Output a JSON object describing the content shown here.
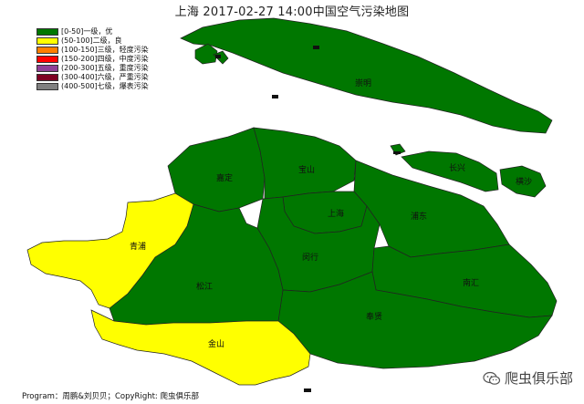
{
  "title": "上海 2017-02-27 14:00中国空气污染地图",
  "legend": [
    {
      "label": "[0-50]一级，优",
      "color": "#007700"
    },
    {
      "label": "(50-100]二级，良",
      "color": "#ffff00"
    },
    {
      "label": "(100-150]三级，轻度污染",
      "color": "#ff7e00"
    },
    {
      "label": "(150-200]四级，中度污染",
      "color": "#ff0000"
    },
    {
      "label": "(200-300]五级，重度污染",
      "color": "#8f3f97"
    },
    {
      "label": "(300-400]六级，严重污染",
      "color": "#7e0023"
    },
    {
      "label": "(400-500]七级，爆表污染",
      "color": "#808080"
    }
  ],
  "districts": [
    {
      "name": "崇明",
      "level": "[0-50]一级，优"
    },
    {
      "name": "长兴",
      "level": "[0-50]一级，优"
    },
    {
      "name": "横沙",
      "level": "[0-50]一级，优"
    },
    {
      "name": "宝山",
      "level": "[0-50]一级，优"
    },
    {
      "name": "嘉定",
      "level": "[0-50]一级，优"
    },
    {
      "name": "上海",
      "level": "[0-50]一级，优"
    },
    {
      "name": "浦东",
      "level": "[0-50]一级，优"
    },
    {
      "name": "青浦",
      "level": "(50-100]二级，良"
    },
    {
      "name": "闵行",
      "level": "[0-50]一级，优"
    },
    {
      "name": "松江",
      "level": "[0-50]一级，优"
    },
    {
      "name": "南汇",
      "level": "[0-50]一级，优"
    },
    {
      "name": "奉贤",
      "level": "[0-50]一级，优"
    },
    {
      "name": "金山",
      "level": "(50-100]二级，良"
    }
  ],
  "footer": "Program：周鹏&刘贝贝；CopyRight: 爬虫俱乐部",
  "watermark": "爬虫俱乐部",
  "icons": {
    "watermark": "wechat-icon"
  }
}
